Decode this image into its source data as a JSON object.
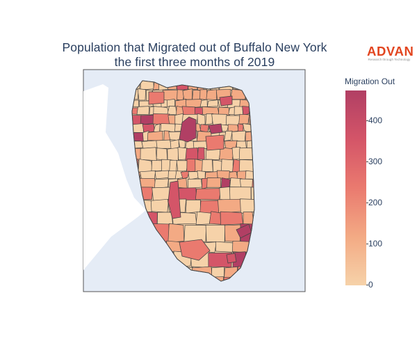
{
  "title": {
    "line1": "Population that Migrated out of Buffalo New York",
    "line2": "the first three months of 2019"
  },
  "logo": {
    "name": "ADVAN",
    "tagline": "Research through Technology"
  },
  "colorbar": {
    "title": "Migration Out",
    "ticks": [
      "400",
      "300",
      "200",
      "100",
      "0"
    ],
    "range": [
      0,
      475
    ],
    "colorscale": [
      "#f6d2a9",
      "#f3aa84",
      "#ea7a6f",
      "#d45568",
      "#b13f64"
    ]
  },
  "map": {
    "region": "Buffalo, New York",
    "water_color": "#e5ecf6",
    "land_color": "#ffffff",
    "tract_border_color": "#444444"
  }
}
